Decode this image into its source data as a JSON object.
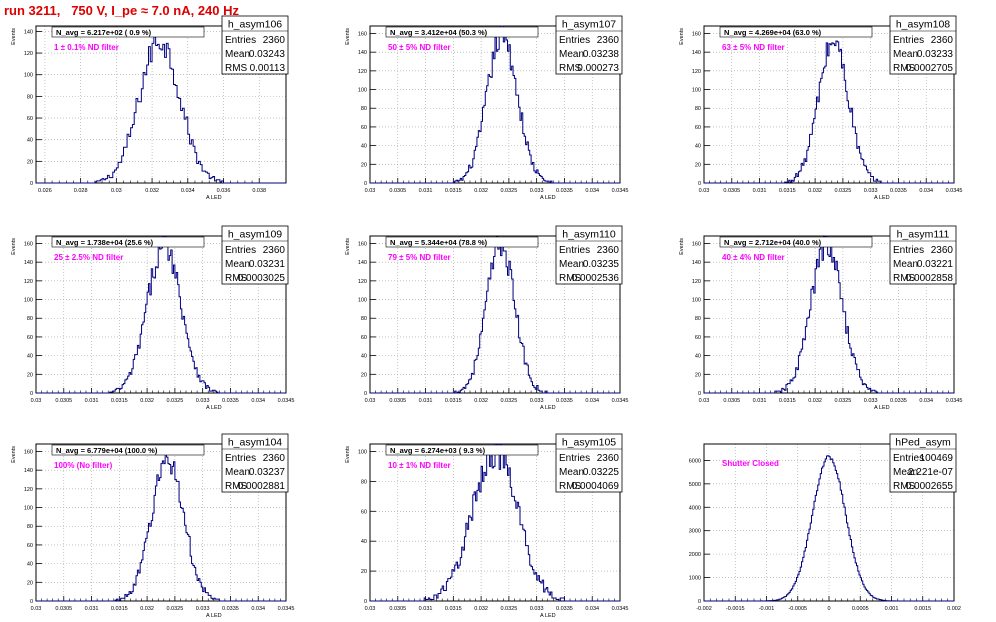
{
  "page": {
    "title": "run 3211,   750 V, I_pe ≈ 7.0 nA, 240 Hz",
    "title_color": "#dd0000",
    "annotation_color": "#ff00ff",
    "line_color": "#000080"
  },
  "chart_data": [
    {
      "type": "histogram",
      "ylabel": "Events",
      "xlabel": "A_LED",
      "navg": "N_avg = 6.217e+02 ( 0.9 %)",
      "annotation": "1 ± 0.1% ND filter",
      "stats": {
        "name": "h_asym106",
        "entries": "2360",
        "mean": "0.03243",
        "rms": "0.00113"
      },
      "xlim": [
        0.0255,
        0.0395
      ],
      "ylim": [
        0,
        145
      ],
      "xticks": [
        "0.026",
        "0.028",
        "0.03",
        "0.032",
        "0.034",
        "0.036",
        "0.038"
      ],
      "xtick_values": [
        0.026,
        0.028,
        0.03,
        0.032,
        0.034,
        0.036,
        0.038
      ],
      "yticks": [
        0,
        20,
        40,
        60,
        80,
        100,
        120,
        140
      ],
      "mean": 0.03243,
      "sigma": 0.00113,
      "peak": 132,
      "bins": 140
    },
    {
      "type": "histogram",
      "ylabel": "Events",
      "xlabel": "A_LED",
      "navg": "N_avg = 3.412e+04 (50.3 %)",
      "annotation": "50 ± 5% ND filter",
      "stats": {
        "name": "h_asym107",
        "entries": "2360",
        "mean": "0.03238",
        "rms": "0.000273"
      },
      "xlim": [
        0.03,
        0.0345
      ],
      "ylim": [
        0,
        168
      ],
      "xticks": [
        "0.03",
        "0.0305",
        "0.031",
        "0.0315",
        "0.032",
        "0.0325",
        "0.033",
        "0.0335",
        "0.034",
        "0.0345"
      ],
      "xtick_values": [
        0.03,
        0.0305,
        0.031,
        0.0315,
        0.032,
        0.0325,
        0.033,
        0.0335,
        0.034,
        0.0345
      ],
      "yticks": [
        0,
        20,
        40,
        60,
        80,
        100,
        120,
        140,
        160
      ],
      "mean": 0.03238,
      "sigma": 0.000273,
      "peak": 158,
      "bins": 180
    },
    {
      "type": "histogram",
      "ylabel": "Events",
      "xlabel": "A_LED",
      "navg": "N_avg = 4.269e+04 (63.0 %)",
      "annotation": "63 ± 5% ND filter",
      "stats": {
        "name": "h_asym108",
        "entries": "2360",
        "mean": "0.03233",
        "rms": "0.0002705"
      },
      "xlim": [
        0.03,
        0.0345
      ],
      "ylim": [
        0,
        168
      ],
      "xticks": [
        "0.03",
        "0.0305",
        "0.031",
        "0.0315",
        "0.032",
        "0.0325",
        "0.033",
        "0.0335",
        "0.034",
        "0.0345"
      ],
      "xtick_values": [
        0.03,
        0.0305,
        0.031,
        0.0315,
        0.032,
        0.0325,
        0.033,
        0.0335,
        0.034,
        0.0345
      ],
      "yticks": [
        0,
        20,
        40,
        60,
        80,
        100,
        120,
        140,
        160
      ],
      "mean": 0.03233,
      "sigma": 0.0002705,
      "peak": 152,
      "bins": 180
    },
    {
      "type": "histogram",
      "ylabel": "Events",
      "xlabel": "A_LED",
      "navg": "N_avg = 1.738e+04 (25.6 %)",
      "annotation": "25 ± 2.5% ND filter",
      "stats": {
        "name": "h_asym109",
        "entries": "2360",
        "mean": "0.03231",
        "rms": "0.0003025"
      },
      "xlim": [
        0.03,
        0.0345
      ],
      "ylim": [
        0,
        168
      ],
      "xticks": [
        "0.03",
        "0.0305",
        "0.031",
        "0.0315",
        "0.032",
        "0.0325",
        "0.033",
        "0.0335",
        "0.034",
        "0.0345"
      ],
      "xtick_values": [
        0.03,
        0.0305,
        0.031,
        0.0315,
        0.032,
        0.0325,
        0.033,
        0.0335,
        0.034,
        0.0345
      ],
      "yticks": [
        0,
        20,
        40,
        60,
        80,
        100,
        120,
        140,
        160
      ],
      "mean": 0.03231,
      "sigma": 0.0003025,
      "peak": 160,
      "bins": 180
    },
    {
      "type": "histogram",
      "ylabel": "Events",
      "xlabel": "A_LED",
      "navg": "N_avg = 5.344e+04 (78.8 %)",
      "annotation": "79 ± 5% ND filter",
      "stats": {
        "name": "h_asym110",
        "entries": "2360",
        "mean": "0.03235",
        "rms": "0.0002536"
      },
      "xlim": [
        0.03,
        0.0345
      ],
      "ylim": [
        0,
        168
      ],
      "xticks": [
        "0.03",
        "0.0305",
        "0.031",
        "0.0315",
        "0.032",
        "0.0325",
        "0.033",
        "0.0335",
        "0.034",
        "0.0345"
      ],
      "xtick_values": [
        0.03,
        0.0305,
        0.031,
        0.0315,
        0.032,
        0.0325,
        0.033,
        0.0335,
        0.034,
        0.0345
      ],
      "yticks": [
        0,
        20,
        40,
        60,
        80,
        100,
        120,
        140,
        160
      ],
      "mean": 0.03235,
      "sigma": 0.0002536,
      "peak": 160,
      "bins": 180
    },
    {
      "type": "histogram",
      "ylabel": "Events",
      "xlabel": "A_LED",
      "navg": "N_avg = 2.712e+04 (40.0 %)",
      "annotation": "40 ± 4% ND filter",
      "stats": {
        "name": "h_asym111",
        "entries": "2360",
        "mean": "0.03221",
        "rms": "0.0002858"
      },
      "xlim": [
        0.03,
        0.0345
      ],
      "ylim": [
        0,
        168
      ],
      "xticks": [
        "0.03",
        "0.0305",
        "0.031",
        "0.0315",
        "0.032",
        "0.0325",
        "0.033",
        "0.0335",
        "0.034",
        "0.0345"
      ],
      "xtick_values": [
        0.03,
        0.0305,
        0.031,
        0.0315,
        0.032,
        0.0325,
        0.033,
        0.0335,
        0.034,
        0.0345
      ],
      "yticks": [
        0,
        20,
        40,
        60,
        80,
        100,
        120,
        140,
        160
      ],
      "mean": 0.03221,
      "sigma": 0.0002858,
      "peak": 158,
      "bins": 180
    },
    {
      "type": "histogram",
      "ylabel": "Events",
      "xlabel": "A_LED",
      "navg": "N_avg = 6.779e+04 (100.0 %)",
      "annotation": "100% (No filter)",
      "stats": {
        "name": "h_asym104",
        "entries": "2360",
        "mean": "0.03237",
        "rms": "0.0002881"
      },
      "xlim": [
        0.03,
        0.0345
      ],
      "ylim": [
        0,
        168
      ],
      "xticks": [
        "0.03",
        "0.0305",
        "0.031",
        "0.0315",
        "0.032",
        "0.0325",
        "0.033",
        "0.0335",
        "0.034",
        "0.0345"
      ],
      "xtick_values": [
        0.03,
        0.0305,
        0.031,
        0.0315,
        0.032,
        0.0325,
        0.033,
        0.0335,
        0.034,
        0.0345
      ],
      "yticks": [
        0,
        20,
        40,
        60,
        80,
        100,
        120,
        140,
        160
      ],
      "mean": 0.03237,
      "sigma": 0.0002881,
      "peak": 152,
      "bins": 180
    },
    {
      "type": "histogram",
      "ylabel": "Events",
      "xlabel": "A_LED",
      "navg": "N_avg = 6.274e+03 ( 9.3 %)",
      "annotation": "10 ± 1% ND filter",
      "stats": {
        "name": "h_asym105",
        "entries": "2360",
        "mean": "0.03225",
        "rms": "0.0004069"
      },
      "xlim": [
        0.03,
        0.0345
      ],
      "ylim": [
        0,
        105
      ],
      "xticks": [
        "0.03",
        "0.0305",
        "0.031",
        "0.0315",
        "0.032",
        "0.0325",
        "0.033",
        "0.0335",
        "0.034",
        "0.0345"
      ],
      "xtick_values": [
        0.03,
        0.0305,
        0.031,
        0.0315,
        0.032,
        0.0325,
        0.033,
        0.0335,
        0.034,
        0.0345
      ],
      "yticks": [
        0,
        20,
        40,
        60,
        80,
        100
      ],
      "mean": 0.03225,
      "sigma": 0.0004069,
      "peak": 100,
      "bins": 180
    },
    {
      "type": "histogram",
      "ylabel": "",
      "xlabel": "",
      "navg": "",
      "annotation": "Shutter Closed",
      "stats": {
        "name": "hPed_asym",
        "entries": "100469",
        "mean": "2.221e-07",
        "rms": "0.0002655"
      },
      "xlim": [
        -0.002,
        0.002
      ],
      "ylim": [
        0,
        6700
      ],
      "xticks": [
        "-0.002",
        "-0.0015",
        "-0.001",
        "-0.0005",
        "0",
        "0.0005",
        "0.001",
        "0.0015",
        "0.002"
      ],
      "xtick_values": [
        -0.002,
        -0.0015,
        -0.001,
        -0.0005,
        0,
        0.0005,
        0.001,
        0.0015,
        0.002
      ],
      "yticks": [
        0,
        1000,
        2000,
        3000,
        4000,
        5000,
        6000
      ],
      "mean": 0.0,
      "sigma": 0.0002655,
      "peak": 6150,
      "bins": 200
    }
  ]
}
